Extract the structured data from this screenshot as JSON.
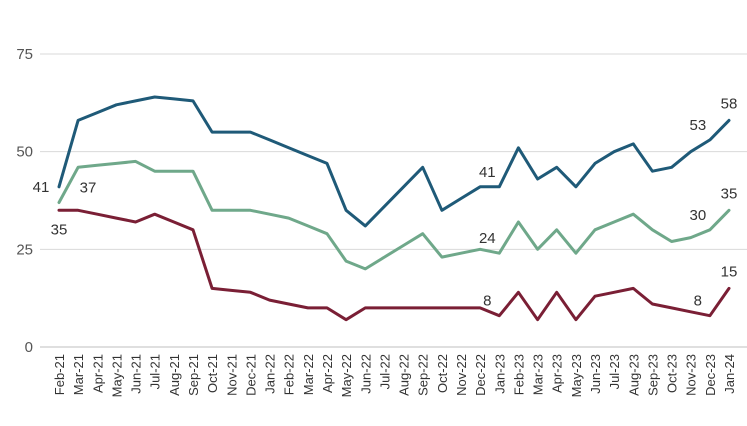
{
  "chart_data": {
    "type": "line",
    "title": "",
    "xlabel": "",
    "ylabel": "",
    "ylim": [
      0,
      75
    ],
    "y_ticks": [
      0,
      25,
      50,
      75
    ],
    "grid": "horizontal",
    "legend": "none",
    "categories": [
      "Feb-21",
      "Mar-21",
      "Apr-21",
      "May-21",
      "Jun-21",
      "Jul-21",
      "Aug-21",
      "Sep-21",
      "Oct-21",
      "Nov-21",
      "Dec-21",
      "Jan-22",
      "Feb-22",
      "Mar-22",
      "Apr-22",
      "May-22",
      "Jun-22",
      "Jul-22",
      "Aug-22",
      "Sep-22",
      "Oct-22",
      "Nov-22",
      "Dec-22",
      "Jan-23",
      "Feb-23",
      "Mar-23",
      "Apr-23",
      "May-23",
      "Jun-23",
      "Jul-23",
      "Aug-23",
      "Sep-23",
      "Oct-23",
      "Nov-23",
      "Dec-23",
      "Jan-24"
    ],
    "series": [
      {
        "color": "#1f5a78",
        "values": [
          41,
          58,
          60,
          62,
          63,
          64,
          63.5,
          63,
          55,
          55,
          55,
          53,
          51,
          49,
          47,
          35,
          31,
          36,
          41,
          46,
          35,
          38,
          41,
          41,
          51,
          43,
          46,
          41,
          47,
          50,
          52,
          45,
          46,
          50,
          53,
          58
        ],
        "labels": [
          {
            "index": 0,
            "text": "41",
            "pos": "left"
          },
          {
            "index": 23,
            "text": "41",
            "pos": "above-left"
          },
          {
            "index": 34,
            "text": "53",
            "pos": "above-left"
          },
          {
            "index": 35,
            "text": "58",
            "pos": "above"
          }
        ]
      },
      {
        "color": "#6fa88a",
        "values": [
          37,
          46,
          46.5,
          47,
          47.5,
          45,
          45,
          45,
          35,
          35,
          35,
          34,
          33,
          31,
          29,
          22,
          20,
          23,
          26,
          29,
          23,
          24,
          25,
          24,
          32,
          25,
          30,
          24,
          30,
          32,
          34,
          30,
          27,
          28,
          30,
          35
        ],
        "labels": [
          {
            "index": 0,
            "text": "37",
            "pos": "above-right"
          },
          {
            "index": 23,
            "text": "24",
            "pos": "above-left"
          },
          {
            "index": 34,
            "text": "30",
            "pos": "above-left"
          },
          {
            "index": 35,
            "text": "35",
            "pos": "above"
          }
        ]
      },
      {
        "color": "#7a1f35",
        "values": [
          35,
          35,
          34,
          33,
          32,
          34,
          32,
          30,
          15,
          14.5,
          14,
          12,
          11,
          10,
          10,
          7,
          10,
          10,
          10,
          10,
          10,
          10,
          10,
          8,
          14,
          7,
          14,
          7,
          13,
          14,
          15,
          11,
          10,
          9,
          8,
          15
        ],
        "labels": [
          {
            "index": 0,
            "text": "35",
            "pos": "below"
          },
          {
            "index": 23,
            "text": "8",
            "pos": "above-left"
          },
          {
            "index": 34,
            "text": "8",
            "pos": "above-left"
          },
          {
            "index": 35,
            "text": "15",
            "pos": "above"
          }
        ]
      }
    ]
  }
}
